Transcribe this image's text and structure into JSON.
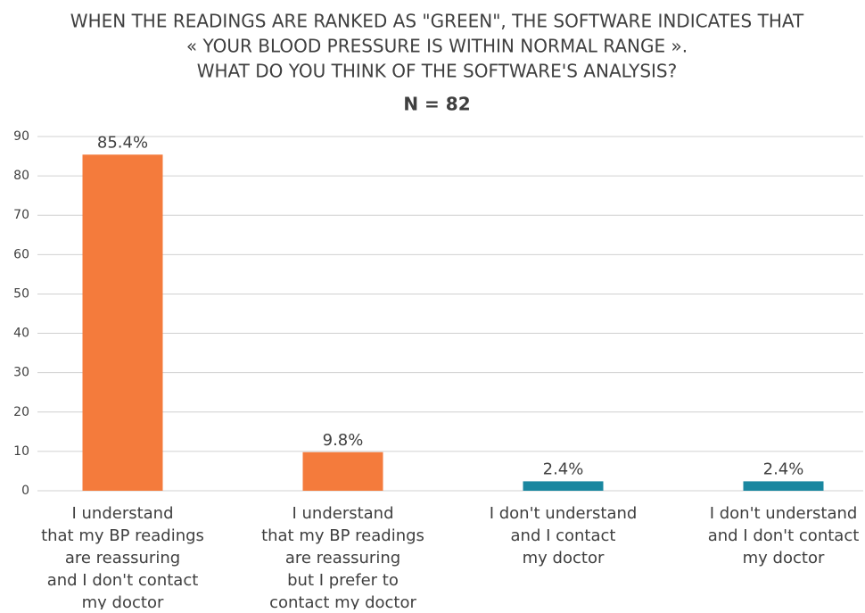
{
  "chart_data": {
    "type": "bar",
    "title": [
      "WHEN THE READINGS ARE RANKED AS \"GREEN\", THE SOFTWARE INDICATES THAT",
      "« YOUR BLOOD PRESSURE IS WITHIN NORMAL RANGE ».",
      "WHAT DO YOU THINK OF THE SOFTWARE'S ANALYSIS?"
    ],
    "subtitle": "N = 82",
    "categories": [
      [
        "I understand",
        "that my BP readings",
        "are reassuring",
        "and I don't contact",
        "my doctor"
      ],
      [
        "I understand",
        "that my BP readings",
        "are reassuring",
        "but I prefer to",
        "contact my doctor"
      ],
      [
        "I don't understand",
        "and I contact",
        "my doctor"
      ],
      [
        "I don't understand",
        "and I don't contact",
        "my doctor"
      ]
    ],
    "values": [
      85.4,
      9.8,
      2.4,
      2.4
    ],
    "value_labels": [
      "85.4%",
      "9.8%",
      "2.4%",
      "2.4%"
    ],
    "colors": [
      "#f47b3c",
      "#f47b3c",
      "#1a87a0",
      "#1a87a0"
    ],
    "ylim": [
      0,
      90
    ],
    "yticks": [
      0,
      10,
      20,
      30,
      40,
      50,
      60,
      70,
      80,
      90
    ],
    "grid": true
  }
}
